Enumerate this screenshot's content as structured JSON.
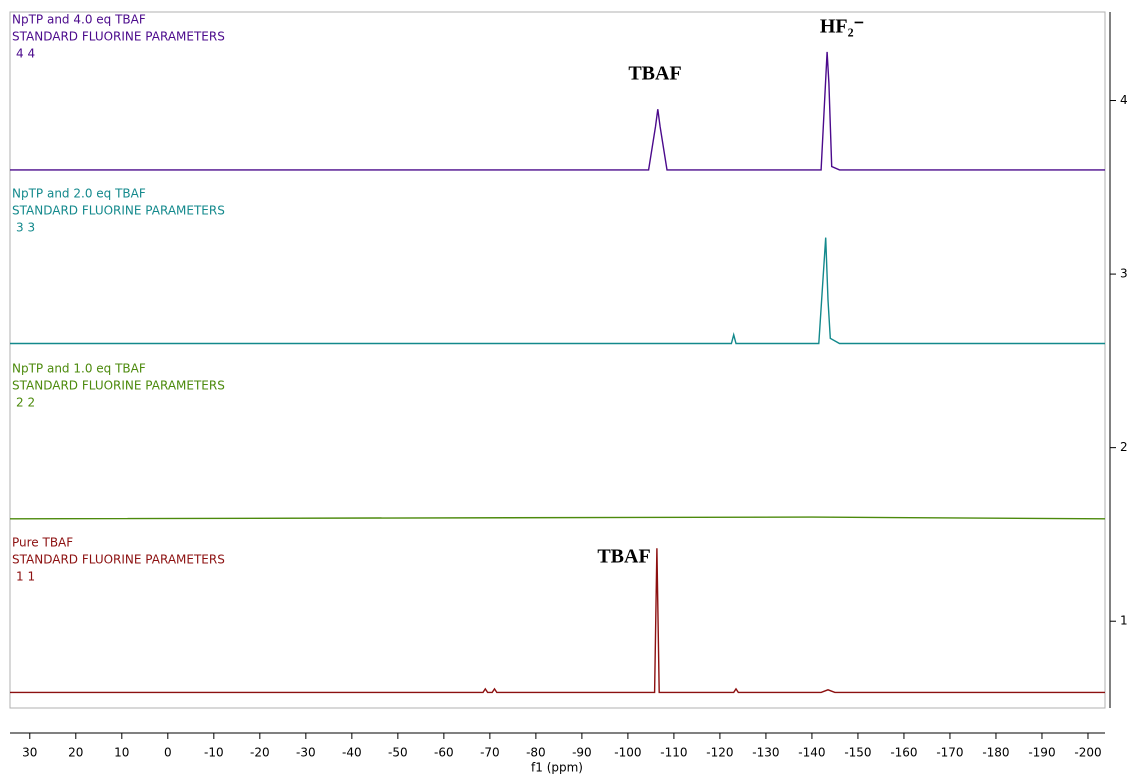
{
  "chart_data": {
    "type": "line",
    "xlabel": "f1 (ppm)",
    "xlim": [
      34.3,
      -203.7
    ],
    "xticks": [
      30,
      20,
      10,
      0,
      -10,
      -20,
      -30,
      -40,
      -50,
      -60,
      -70,
      -80,
      -90,
      -100,
      -110,
      -120,
      -130,
      -140,
      -150,
      -160,
      -170,
      -180,
      -190,
      -200
    ],
    "ylim": [
      0.5,
      4.51
    ],
    "yticks": [
      1,
      2,
      3,
      4
    ],
    "annotations": [
      "TBAF",
      "HF₂⁻",
      "TBAF"
    ],
    "series": [
      {
        "name": "NpTP and 4.0 eq TBAF",
        "parameters": "STANDARD FLUORINE PARAMETERS",
        "label": "4 4",
        "color": "#4b0a8c",
        "x": [
          34.3,
          -104.5,
          -106,
          -106.5,
          -107,
          -108.5,
          -142,
          -143.3,
          -143.7,
          -144.3,
          -146,
          -203.7
        ],
        "values": [
          3.6,
          3.6,
          3.85,
          3.95,
          3.85,
          3.6,
          3.6,
          4.28,
          4.1,
          3.62,
          3.6,
          3.6
        ]
      },
      {
        "name": "NpTP and 2.0 eq TBAF",
        "parameters": "STANDARD FLUORINE PARAMETERS",
        "label": "3 3",
        "color": "#13898c",
        "x": [
          34.3,
          -122.5,
          -123,
          -123.5,
          -141.5,
          -143,
          -143.5,
          -144,
          -146,
          -203.7
        ],
        "values": [
          2.6,
          2.6,
          2.65,
          2.6,
          2.6,
          3.21,
          2.85,
          2.63,
          2.6,
          2.6
        ]
      },
      {
        "name": "NpTP and 1.0 eq TBAF",
        "parameters": "STANDARD FLUORINE PARAMETERS",
        "label": "2 2",
        "color": "#4c8a0c",
        "x": [
          34.3,
          -140,
          -203.7
        ],
        "values": [
          1.59,
          1.6,
          1.59
        ]
      },
      {
        "name": "Pure TBAF",
        "parameters": "STANDARD FLUORINE PARAMETERS",
        "label": "1 1",
        "color": "#8c1010",
        "x": [
          34.3,
          -68.5,
          -69,
          -69.5,
          -70.5,
          -71,
          -71.5,
          -105.8,
          -106.3,
          -106.8,
          -123,
          -123.5,
          -124,
          -142,
          -143.5,
          -145,
          -203.7
        ],
        "values": [
          0.59,
          0.59,
          0.61,
          0.59,
          0.59,
          0.61,
          0.59,
          0.59,
          1.42,
          0.59,
          0.59,
          0.61,
          0.59,
          0.59,
          0.605,
          0.59,
          0.59
        ]
      }
    ]
  }
}
